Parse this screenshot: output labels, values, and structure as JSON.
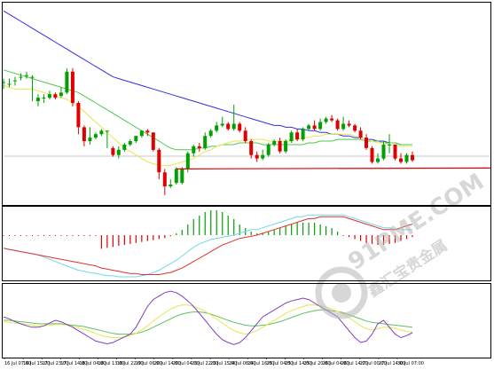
{
  "colors": {
    "background": "#ffffff",
    "frame": "#000000",
    "bull_candle": "#00a000",
    "bear_candle": "#e00000",
    "ma_slow": "#3030e0",
    "ma_mid": "#50c850",
    "ma_fast": "#e6e650",
    "support_line": "#e00000",
    "hist_up": "#00a000",
    "hist_down": "#e00000",
    "macd_line": "#e03030",
    "signal_line": "#70d8e8",
    "osc_main": "#8040c0",
    "osc_signal1": "#e6e650",
    "osc_signal2": "#60c060",
    "watermark": "#b8b8b8"
  },
  "watermark": {
    "brand": "91PME.COM",
    "cn": "鑫汇宝贵金属"
  },
  "x_axis": {
    "tick_labels": [
      "16 Jul 07:00",
      "16 Jul 15:00",
      "17 Jul 23:00",
      "17 Jul 14:00",
      "18 Jul 04:00",
      "18 Jul 13:00",
      "18 Jul 22:00",
      "19 Jul 06:00",
      "20 Jul 14:00",
      "20 Jul 04:00",
      "23 Jul 22:00",
      "23 Jul 15:00",
      "24 Jul 08:00",
      "24 Jul 16:00",
      "25 Jul 04:00",
      "25 Jul 14:00",
      "25 Jul 20:00",
      "26 Jul 04:00",
      "26 Jul 14:00",
      "27 Jul 00:00",
      "27 Jul 14:00",
      "30 Jul 07:00"
    ]
  },
  "chart_data": [
    {
      "type": "candlestick",
      "panel": "price",
      "overlays": [
        "slow moving average",
        "medium moving average",
        "fast moving average",
        "horizontal support line"
      ],
      "ohlc": [
        [
          94,
          94,
          90,
          96
        ],
        [
          93,
          93,
          91,
          96
        ],
        [
          95,
          95,
          92,
          97
        ],
        [
          97,
          97,
          95,
          99
        ],
        [
          98,
          98,
          96,
          100
        ],
        [
          97,
          97,
          83,
          98
        ],
        [
          83,
          85,
          80,
          87
        ],
        [
          85,
          85,
          82,
          87
        ],
        [
          85,
          87,
          84,
          89
        ],
        [
          87,
          85,
          84,
          88
        ],
        [
          86,
          88,
          85,
          91
        ],
        [
          88,
          100,
          87,
          102
        ],
        [
          100,
          82,
          80,
          102
        ],
        [
          82,
          68,
          64,
          83
        ],
        [
          68,
          60,
          57,
          69
        ],
        [
          60,
          62,
          58,
          68
        ],
        [
          62,
          64,
          61,
          65
        ],
        [
          64,
          66,
          63,
          67
        ],
        [
          66,
          66,
          56,
          66
        ],
        [
          56,
          52,
          51,
          57
        ],
        [
          52,
          55,
          50,
          57
        ],
        [
          55,
          58,
          54,
          59
        ],
        [
          58,
          60,
          57,
          61
        ],
        [
          60,
          63,
          59,
          63
        ],
        [
          63,
          66,
          62,
          66
        ],
        [
          66,
          65,
          63,
          67
        ],
        [
          65,
          55,
          54,
          65
        ],
        [
          55,
          42,
          38,
          56
        ],
        [
          42,
          34,
          29,
          44
        ],
        [
          34,
          35,
          33,
          38
        ],
        [
          36,
          44,
          35,
          45
        ],
        [
          36,
          44,
          35,
          45
        ],
        [
          44,
          53,
          42,
          54
        ],
        [
          53,
          57,
          51,
          58
        ],
        [
          57,
          56,
          54,
          59
        ],
        [
          56,
          63,
          55,
          65
        ],
        [
          63,
          66,
          62,
          67
        ],
        [
          66,
          69,
          65,
          71
        ],
        [
          69,
          70,
          68,
          74
        ],
        [
          70,
          67,
          66,
          71
        ],
        [
          67,
          70,
          66,
          81
        ],
        [
          70,
          66,
          65,
          71
        ],
        [
          66,
          60,
          59,
          68
        ],
        [
          60,
          52,
          50,
          61
        ],
        [
          52,
          50,
          48,
          54
        ],
        [
          50,
          52,
          49,
          55
        ],
        [
          52,
          58,
          51,
          59
        ],
        [
          58,
          60,
          57,
          61
        ],
        [
          60,
          54,
          53,
          62
        ],
        [
          54,
          60,
          53,
          61
        ],
        [
          60,
          65,
          59,
          66
        ],
        [
          65,
          61,
          60,
          67
        ],
        [
          61,
          67,
          60,
          68
        ],
        [
          67,
          69,
          66,
          70
        ],
        [
          69,
          67,
          66,
          72
        ],
        [
          67,
          71,
          66,
          73
        ],
        [
          71,
          73,
          70,
          74
        ],
        [
          73,
          72,
          71,
          75
        ],
        [
          72,
          67,
          66,
          73
        ],
        [
          67,
          70,
          66,
          74
        ],
        [
          70,
          69,
          68,
          72
        ],
        [
          69,
          66,
          65,
          70
        ],
        [
          66,
          62,
          61,
          68
        ],
        [
          62,
          56,
          55,
          64
        ],
        [
          56,
          48,
          47,
          57
        ],
        [
          48,
          50,
          47,
          53
        ],
        [
          50,
          58,
          49,
          60
        ],
        [
          58,
          58,
          53,
          64
        ],
        [
          58,
          50,
          49,
          58
        ],
        [
          50,
          48,
          47,
          53
        ],
        [
          48,
          52,
          47,
          53
        ],
        [
          52,
          49,
          48,
          54
        ]
      ],
      "ma_slow": [
        135,
        133,
        131,
        129,
        127,
        125,
        123,
        121,
        119,
        117,
        115,
        113,
        111,
        109,
        107,
        105,
        103,
        101,
        99,
        97,
        96,
        95,
        94,
        93,
        92,
        91,
        90,
        89,
        88,
        87,
        86,
        85,
        84,
        83,
        82,
        81,
        80,
        79,
        78,
        77,
        76,
        75,
        74,
        73,
        72,
        71,
        70,
        69,
        69,
        68,
        68,
        67,
        67,
        66,
        66,
        65,
        65,
        64,
        64,
        63,
        63,
        62,
        62,
        61,
        61,
        60,
        60,
        59,
        59,
        58,
        58,
        58
      ],
      "ma_mid": [
        101,
        100,
        99,
        98,
        97,
        96,
        95,
        94,
        93,
        92,
        91,
        90,
        89,
        88,
        86,
        84,
        82,
        80,
        78,
        76,
        74,
        72,
        70,
        68,
        66,
        64,
        62,
        60,
        58,
        56,
        55,
        55,
        55,
        55,
        56,
        56,
        57,
        57,
        58,
        58,
        58,
        59,
        59,
        59,
        59,
        58,
        58,
        58,
        58,
        58,
        58,
        58,
        58,
        59,
        59,
        60,
        60,
        60,
        61,
        61,
        61,
        61,
        61,
        60,
        60,
        60,
        59,
        59,
        59,
        58,
        58,
        58
      ],
      "ma_fast": [
        92,
        91,
        90,
        90,
        90,
        90,
        89,
        88,
        87,
        86,
        85,
        84,
        82,
        80,
        77,
        74,
        71,
        68,
        65,
        62,
        59,
        56,
        54,
        52,
        50,
        48,
        47,
        46,
        46,
        46,
        47,
        48,
        49,
        50,
        52,
        54,
        55,
        57,
        58,
        59,
        60,
        60,
        61,
        61,
        61,
        61,
        60,
        60,
        60,
        60,
        61,
        61,
        62,
        62,
        63,
        63,
        64,
        64,
        64,
        64,
        64,
        63,
        62,
        61,
        60,
        59,
        59,
        58,
        58,
        57,
        57,
        57
      ],
      "support": {
        "start_index": 30,
        "value": 44
      }
    },
    {
      "type": "bar",
      "panel": "histogram",
      "overlays": [
        "line",
        "signal line"
      ],
      "values": [
        0,
        0,
        0,
        0,
        0,
        0,
        0,
        0,
        0,
        0,
        0,
        0,
        0,
        0,
        0,
        0,
        0,
        -14,
        -13,
        -12,
        -11,
        -10,
        -9,
        -8,
        -7,
        -6,
        -5,
        -4,
        -3,
        -1,
        1,
        3,
        6,
        9,
        11,
        13,
        14,
        14,
        13,
        11,
        9,
        6,
        4,
        2,
        1,
        1,
        2,
        3,
        4,
        5,
        6,
        7,
        7,
        7,
        7,
        6,
        5,
        4,
        2,
        0,
        -2,
        -4,
        -6,
        -8,
        -9,
        -10,
        -10,
        -9,
        -8,
        -6,
        -4,
        -2
      ],
      "line": [
        -12,
        -13,
        -14,
        -15,
        -16,
        -17,
        -18,
        -19,
        -20,
        -21,
        -22,
        -23,
        -24,
        -25,
        -26,
        -27,
        -28,
        -30,
        -31,
        -32,
        -33,
        -34,
        -35,
        -35,
        -36,
        -36,
        -36,
        -36,
        -35,
        -34,
        -32,
        -30,
        -27,
        -24,
        -21,
        -18,
        -15,
        -12,
        -9,
        -7,
        -5,
        -3,
        -2,
        -1,
        0,
        1,
        2,
        3,
        4,
        5,
        6,
        7,
        8,
        9,
        9,
        10,
        10,
        10,
        10,
        10,
        9,
        8,
        7,
        6,
        5,
        4,
        3,
        3,
        3,
        4,
        5,
        6
      ],
      "signal": [
        -12,
        -13,
        -14,
        -15,
        -16,
        -17,
        -18,
        -20,
        -22,
        -24,
        -26,
        -28,
        -30,
        -32,
        -33,
        -34,
        -35,
        -36,
        -37,
        -37,
        -38,
        -38,
        -38,
        -38,
        -37,
        -36,
        -34,
        -32,
        -29,
        -26,
        -23,
        -19,
        -15,
        -11,
        -8,
        -6,
        -4,
        -3,
        -2,
        -1,
        0,
        1,
        2,
        3,
        3,
        4,
        5,
        6,
        7,
        8,
        9,
        10,
        10,
        11,
        11,
        11,
        11,
        11,
        11,
        11,
        10,
        9,
        8,
        7,
        6,
        5,
        4,
        4,
        3,
        3,
        3,
        3
      ]
    },
    {
      "type": "line",
      "panel": "oscillator",
      "series": [
        {
          "values": [
            55,
            52,
            48,
            45,
            42,
            40,
            40,
            42,
            46,
            50,
            48,
            44,
            40,
            35,
            30,
            25,
            20,
            18,
            16,
            18,
            22,
            26,
            30,
            40,
            55,
            70,
            80,
            85,
            90,
            92,
            90,
            85,
            78,
            70,
            60,
            50,
            40,
            30,
            22,
            18,
            15,
            18,
            25,
            35,
            45,
            55,
            60,
            65,
            70,
            75,
            78,
            80,
            82,
            80,
            75,
            70,
            65,
            60,
            55,
            45,
            35,
            25,
            18,
            20,
            30,
            45,
            50,
            40,
            30,
            25,
            28,
            32
          ]
        },
        {
          "values": [
            48,
            47,
            46,
            45,
            44,
            43,
            42,
            42,
            43,
            44,
            44,
            43,
            41,
            39,
            37,
            34,
            31,
            28,
            26,
            25,
            25,
            26,
            28,
            31,
            36,
            42,
            49,
            55,
            61,
            66,
            70,
            72,
            72,
            70,
            67,
            63,
            58,
            52,
            46,
            40,
            35,
            32,
            30,
            32,
            35,
            40,
            45,
            50,
            55,
            60,
            64,
            67,
            70,
            72,
            72,
            71,
            69,
            66,
            63,
            59,
            54,
            48,
            42,
            38,
            36,
            38,
            40,
            40,
            38,
            36,
            34,
            33
          ]
        },
        {
          "values": [
            50,
            50,
            49,
            48,
            47,
            46,
            45,
            45,
            45,
            45,
            45,
            44,
            43,
            42,
            41,
            39,
            37,
            35,
            33,
            31,
            30,
            30,
            30,
            31,
            33,
            36,
            40,
            44,
            48,
            52,
            56,
            59,
            61,
            62,
            62,
            61,
            59,
            56,
            53,
            50,
            47,
            45,
            43,
            42,
            42,
            43,
            44,
            46,
            48,
            51,
            54,
            57,
            60,
            62,
            64,
            65,
            65,
            64,
            63,
            61,
            58,
            55,
            52,
            49,
            47,
            46,
            45,
            44,
            43,
            42,
            41,
            40
          ]
        }
      ],
      "ylim": [
        0,
        100
      ]
    }
  ]
}
